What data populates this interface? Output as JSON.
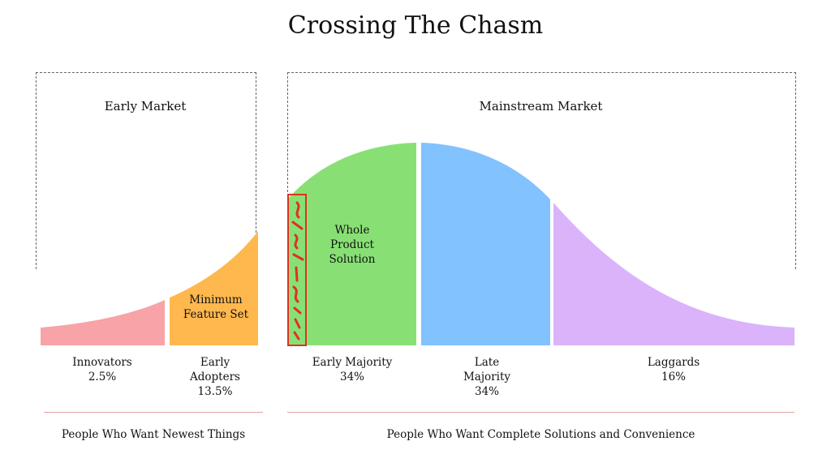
{
  "title": "Crossing The Chasm",
  "regions": {
    "early_market": "Early Market",
    "mainstream_market": "Mainstream Market"
  },
  "segments": [
    {
      "key": "innovators",
      "label_lines": [
        "Innovators",
        "2.5%"
      ],
      "color": "#f7a3a8"
    },
    {
      "key": "early_adopters",
      "label_lines": [
        "Early",
        "Adopters",
        "13.5%"
      ],
      "color": "#ffb84d"
    },
    {
      "key": "early_majority",
      "label_lines": [
        "Early Majority",
        "34%"
      ],
      "color": "#88e075"
    },
    {
      "key": "late_majority",
      "label_lines": [
        "Late",
        "Majority",
        "34%"
      ],
      "color": "#82c2ff"
    },
    {
      "key": "laggards",
      "label_lines": [
        "Laggards",
        "16%"
      ],
      "color": "#dab3fb"
    }
  ],
  "inner_labels": {
    "minimum_feature_set": [
      "Minimum",
      "Feature Set"
    ],
    "whole_product_solution": [
      "Whole",
      "Product",
      "Solution"
    ]
  },
  "notes": {
    "left": "People Who Want Newest Things",
    "right": "People Who Want Complete Solutions and Convenience"
  },
  "colors": {
    "chasm_mark": "#e03020",
    "rule": "#e3a0a0"
  }
}
